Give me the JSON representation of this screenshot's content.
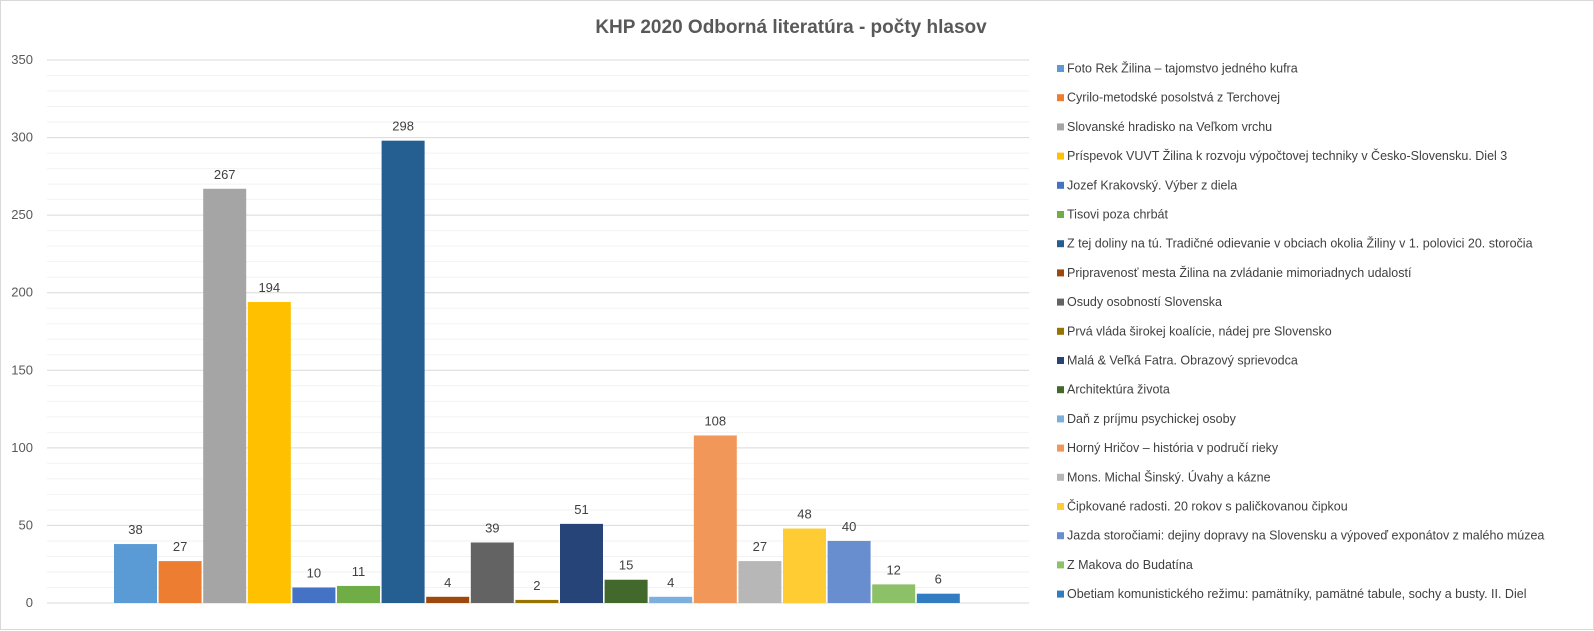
{
  "chart_data": {
    "type": "bar",
    "title": "KHP 2020 Odborná literatúra - počty hlasov",
    "xlabel": "",
    "ylabel": "",
    "ylim": [
      0,
      350
    ],
    "y_ticks": [
      0,
      50,
      100,
      150,
      200,
      250,
      300,
      350
    ],
    "minor_gridlines": true,
    "legend_position": "right",
    "data_labels": true,
    "series": [
      {
        "name": "Foto Rek Žilina – tajomstvo jedného kufra",
        "value": 38,
        "color": "#5b9bd5"
      },
      {
        "name": "Cyrilo-metodské posolstvá z Terchovej",
        "value": 27,
        "color": "#ed7d31"
      },
      {
        "name": "Slovanské hradisko na Veľkom vrchu",
        "value": 267,
        "color": "#a5a5a5"
      },
      {
        "name": "Príspevok VUVT Žilina k rozvoju výpočtovej techniky v Česko-Slovensku. Diel 3",
        "value": 194,
        "color": "#ffc000"
      },
      {
        "name": "Jozef Krakovský. Výber z diela",
        "value": 10,
        "color": "#4472c4"
      },
      {
        "name": "Tisovi poza chrbát",
        "value": 11,
        "color": "#70ad47"
      },
      {
        "name": "Z tej doliny na tú. Tradičné odievanie v obciach okolia Žiliny v 1. polovici  20. storočia",
        "value": 298,
        "color": "#255e91"
      },
      {
        "name": "Pripravenosť mesta Žilina na zvládanie mimoriadnych udalostí",
        "value": 4,
        "color": "#9e480e"
      },
      {
        "name": "Osudy osobností Slovenska",
        "value": 39,
        "color": "#636363"
      },
      {
        "name": "Prvá vláda širokej koalície, nádej pre Slovensko",
        "value": 2,
        "color": "#997300"
      },
      {
        "name": "Malá & Veľká Fatra. Obrazový sprievodca",
        "value": 51,
        "color": "#264478"
      },
      {
        "name": "Architektúra života",
        "value": 15,
        "color": "#43682b"
      },
      {
        "name": "Daň z príjmu psychickej osoby",
        "value": 4,
        "color": "#7cafdd"
      },
      {
        "name": "Horný Hričov – história v područí rieky",
        "value": 108,
        "color": "#f1975a"
      },
      {
        "name": "Mons. Michal Šinský. Úvahy a kázne",
        "value": 27,
        "color": "#b7b7b7"
      },
      {
        "name": "Čipkované radosti. 20 rokov s paličkovanou čipkou",
        "value": 48,
        "color": "#ffcd33"
      },
      {
        "name": "Jazda storočiami: dejiny dopravy na Slovensku a výpoveď exponátov z malého múzea",
        "value": 40,
        "color": "#698ed0"
      },
      {
        "name": "Z Makova do Budatína",
        "value": 12,
        "color": "#8cc168"
      },
      {
        "name": "Obetiam komunistického režimu: pamätníky, pamätné tabule, sochy a busty. II. Diel",
        "value": 6,
        "color": "#327dc2"
      }
    ]
  }
}
